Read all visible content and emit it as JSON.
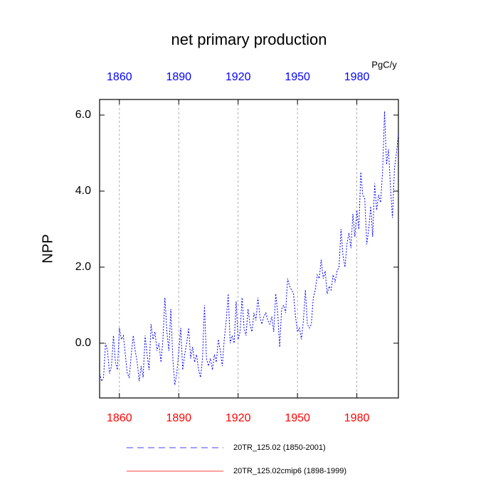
{
  "chart_data": {
    "type": "line",
    "title": "net primary production",
    "ylabel": "NPP",
    "units": "PgC/y",
    "x": [
      1850,
      1851,
      1852,
      1853,
      1854,
      1855,
      1856,
      1857,
      1858,
      1859,
      1860,
      1861,
      1862,
      1863,
      1864,
      1865,
      1866,
      1867,
      1868,
      1869,
      1870,
      1871,
      1872,
      1873,
      1874,
      1875,
      1876,
      1877,
      1878,
      1879,
      1880,
      1881,
      1882,
      1883,
      1884,
      1885,
      1886,
      1887,
      1888,
      1889,
      1890,
      1891,
      1892,
      1893,
      1894,
      1895,
      1896,
      1897,
      1898,
      1899,
      1900,
      1901,
      1902,
      1903,
      1904,
      1905,
      1906,
      1907,
      1908,
      1909,
      1910,
      1911,
      1912,
      1913,
      1914,
      1915,
      1916,
      1917,
      1918,
      1919,
      1920,
      1921,
      1922,
      1923,
      1924,
      1925,
      1926,
      1927,
      1928,
      1929,
      1930,
      1931,
      1932,
      1933,
      1934,
      1935,
      1936,
      1937,
      1938,
      1939,
      1940,
      1941,
      1942,
      1943,
      1944,
      1945,
      1946,
      1947,
      1948,
      1949,
      1950,
      1951,
      1952,
      1953,
      1954,
      1955,
      1956,
      1957,
      1958,
      1959,
      1960,
      1961,
      1962,
      1963,
      1964,
      1965,
      1966,
      1967,
      1968,
      1969,
      1970,
      1971,
      1972,
      1973,
      1974,
      1975,
      1976,
      1977,
      1978,
      1979,
      1980,
      1981,
      1982,
      1983,
      1984,
      1985,
      1986,
      1987,
      1988,
      1989,
      1990,
      1991,
      1992,
      1993,
      1994,
      1995,
      1996,
      1997,
      1998,
      1999,
      2000,
      2001
    ],
    "series": [
      {
        "name": "20TR_125.02 (1850-2001)",
        "color": "#0000ff",
        "line_style": "dashed",
        "values": [
          -0.8,
          -1.0,
          -0.9,
          0.0,
          -0.2,
          -0.8,
          -0.6,
          0.2,
          -0.5,
          -0.7,
          0.4,
          0.1,
          0.2,
          -0.3,
          -0.8,
          -0.9,
          -0.3,
          0.2,
          -0.2,
          -0.5,
          -1.0,
          -0.6,
          -0.9,
          0.2,
          -0.3,
          -0.7,
          0.5,
          0.1,
          0.3,
          -0.2,
          0.0,
          -0.5,
          0.1,
          1.2,
          0.3,
          -0.2,
          0.9,
          -0.4,
          -1.1,
          -0.8,
          -0.2,
          0.4,
          -0.7,
          -0.3,
          0.0,
          0.4,
          -0.4,
          -0.1,
          -0.5,
          -0.3,
          -0.7,
          -0.9,
          -0.4,
          1.0,
          -0.4,
          -0.6,
          -0.4,
          -0.7,
          -0.3,
          -0.5,
          0.1,
          -0.2,
          -0.6,
          0.1,
          0.6,
          1.3,
          0.0,
          0.2,
          0.0,
          1.1,
          0.1,
          0.3,
          1.2,
          0.4,
          0.2,
          0.9,
          0.5,
          0.3,
          0.8,
          0.6,
          1.2,
          0.7,
          0.5,
          0.7,
          0.8,
          0.6,
          0.5,
          0.7,
          0.3,
          1.3,
          0.8,
          -0.1,
          0.9,
          1.0,
          0.8,
          1.7,
          1.5,
          1.4,
          1.3,
          0.7,
          0.3,
          0.4,
          0.1,
          0.6,
          1.4,
          0.5,
          0.4,
          0.5,
          1.2,
          1.4,
          1.8,
          1.7,
          2.2,
          1.7,
          1.9,
          1.3,
          1.5,
          1.4,
          1.8,
          1.6,
          1.9,
          2.0,
          3.0,
          2.3,
          2.0,
          2.6,
          2.9,
          2.5,
          3.4,
          2.8,
          3.5,
          3.0,
          4.5,
          3.9,
          3.8,
          2.6,
          3.0,
          3.6,
          2.8,
          4.2,
          3.5,
          3.9,
          3.7,
          4.5,
          6.1,
          4.7,
          5.1,
          4.1,
          3.3,
          4.6,
          5.0,
          5.5
        ]
      },
      {
        "name": "20TR_125.02cmip6 (1898-1999)",
        "color": "#ff0000",
        "line_style": "solid",
        "values": [
          null,
          null,
          null,
          null,
          null,
          null,
          null,
          null,
          null,
          null,
          null,
          null,
          null,
          null,
          null,
          null,
          null,
          null,
          null,
          null,
          null,
          null,
          null,
          null,
          null,
          null,
          null,
          null,
          null,
          null,
          null,
          null,
          null,
          null,
          null,
          null,
          null,
          null,
          null,
          null,
          null,
          null,
          null,
          null,
          null,
          null,
          null,
          null,
          null,
          null,
          null,
          null,
          null,
          null,
          null,
          null,
          null,
          null,
          null,
          null,
          null,
          null,
          null,
          null,
          null,
          null,
          null,
          null,
          null,
          null,
          null,
          null,
          null,
          null,
          null,
          null,
          null,
          null,
          null,
          null,
          null,
          null,
          null,
          null,
          null,
          null,
          null,
          null,
          null,
          null,
          null,
          null,
          null,
          null,
          null,
          null,
          null,
          null,
          null,
          null,
          null,
          null,
          null,
          null,
          null,
          null,
          null,
          null,
          null,
          null,
          null,
          null,
          null,
          null,
          null,
          null,
          null,
          null,
          null,
          null,
          null,
          null,
          null,
          null,
          null,
          null,
          null,
          null,
          null,
          null,
          null,
          null,
          null,
          null,
          null,
          null,
          null,
          null,
          null,
          null,
          null,
          null,
          null,
          null,
          null,
          null,
          null,
          null,
          null,
          null,
          null,
          null
        ]
      }
    ],
    "xlim": [
      1850,
      2001
    ],
    "xticks": [
      1860,
      1890,
      1920,
      1950,
      1980
    ],
    "ylim": [
      -1.44,
      6.41
    ],
    "yticks": [
      {
        "value": 0,
        "label": "0.0"
      },
      {
        "value": 2,
        "label": "2.0"
      },
      {
        "value": 4,
        "label": "4.0"
      },
      {
        "value": 6,
        "label": "6.0"
      }
    ],
    "bottom_tick_color": "#ff0000",
    "top_tick_color": "#0000ff",
    "grid": true
  }
}
